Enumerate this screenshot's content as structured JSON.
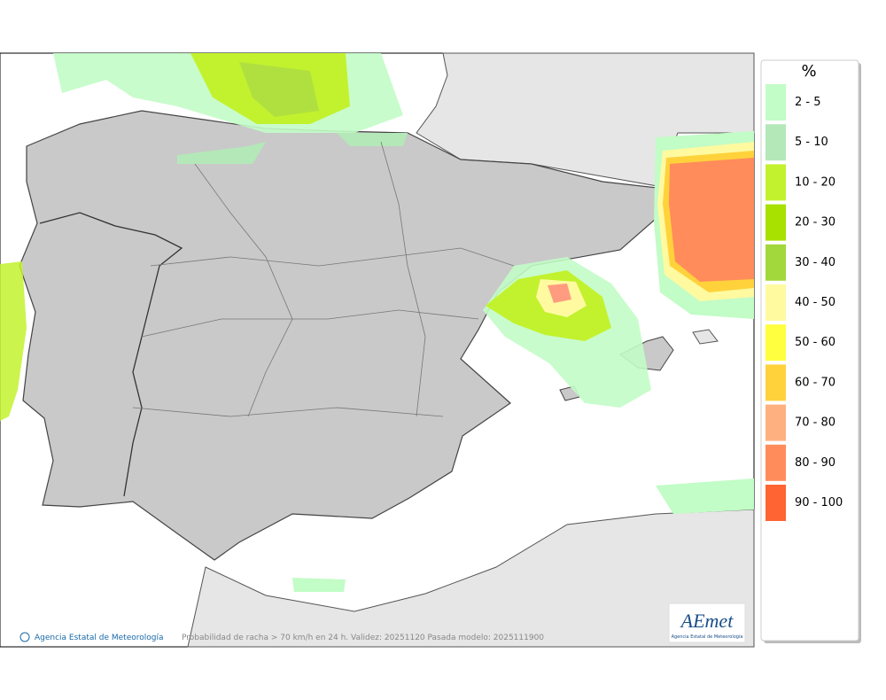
{
  "legend": {
    "title": "%",
    "items": [
      {
        "label": "2 - 5",
        "color": "#c2fcc6"
      },
      {
        "label": "5 - 10",
        "color": "#b4e8b8"
      },
      {
        "label": "10 - 20",
        "color": "#c2f22e"
      },
      {
        "label": "20 - 30",
        "color": "#a8e000"
      },
      {
        "label": "30 - 40",
        "color": "#a2d83c"
      },
      {
        "label": "40 - 50",
        "color": "#fffaa0"
      },
      {
        "label": "50 - 60",
        "color": "#ffff40"
      },
      {
        "label": "60 - 70",
        "color": "#ffd23c"
      },
      {
        "label": "70 - 80",
        "color": "#ffb080"
      },
      {
        "label": "80 - 90",
        "color": "#ff8c5a"
      },
      {
        "label": "90 - 100",
        "color": "#ff6432"
      }
    ]
  },
  "footer": {
    "credit": "Agencia Estatal de Meteorología",
    "caption": "Probabilidad de racha > 70 km/h en 24 h. Validez: 20251120 Pasada modelo: 2025111900"
  },
  "logo": {
    "name": "AEmet",
    "subtitle": "Agencia Estatal de Meteorología"
  }
}
